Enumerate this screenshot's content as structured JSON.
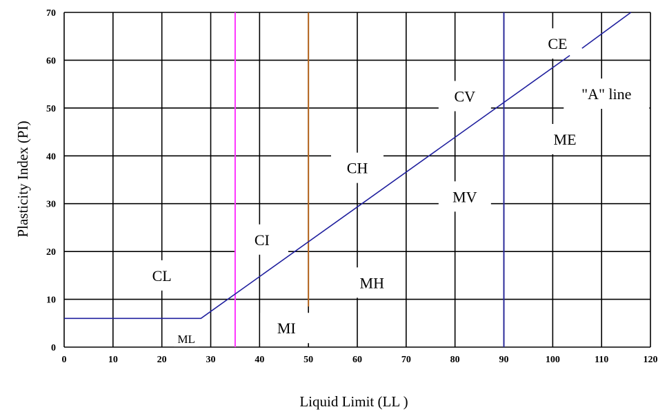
{
  "chart_data": {
    "type": "line",
    "title": "",
    "xlabel": "Liquid Limit (LL )",
    "ylabel": "Plasticity Index (PI)",
    "xlim": [
      0,
      120
    ],
    "ylim": [
      0,
      70
    ],
    "x_ticks": [
      0,
      10,
      20,
      30,
      40,
      50,
      60,
      70,
      80,
      90,
      100,
      110,
      120
    ],
    "y_ticks": [
      0,
      10,
      20,
      30,
      40,
      50,
      60,
      70
    ],
    "x_tick_labels": [
      "0",
      "10",
      "20",
      "30",
      "40",
      "50",
      "60",
      "70",
      "80",
      "90",
      "100",
      "110",
      "120"
    ],
    "y_tick_labels": [
      "0",
      "10",
      "20",
      "30",
      "40",
      "50",
      "60",
      "70"
    ],
    "grid": true,
    "series": [
      {
        "name": "\"A\" line",
        "color": "#1f1f9e",
        "points": [
          [
            0,
            6
          ],
          [
            28,
            6
          ],
          [
            103.5,
            61
          ]
        ]
      },
      {
        "name": "\"A\" line",
        "color": "#1f1f9e",
        "points": [
          [
            106,
            62.5
          ],
          [
            116,
            70
          ]
        ]
      }
    ],
    "vertical_lines": [
      {
        "x": 35,
        "color": "#ff33ff",
        "y_from": 0,
        "y_to": 70
      },
      {
        "x": 50,
        "color": "#b5651d",
        "y_from": 8.5,
        "y_to": 70
      },
      {
        "x": 90,
        "color": "#2a2a9a",
        "y_from": 0,
        "y_to": 70
      }
    ],
    "annotations": [
      {
        "text": "CL",
        "x": 20,
        "y": 15,
        "size": "normal"
      },
      {
        "text": "ML",
        "x": 25,
        "y": 2,
        "size": "small"
      },
      {
        "text": "CI",
        "x": 40.5,
        "y": 22.5,
        "size": "normal"
      },
      {
        "text": "MI",
        "x": 45.5,
        "y": 4,
        "size": "normal"
      },
      {
        "text": "CH",
        "x": 60,
        "y": 37.5,
        "size": "normal"
      },
      {
        "text": "MH",
        "x": 63,
        "y": 13.5,
        "size": "normal"
      },
      {
        "text": "CV",
        "x": 82,
        "y": 52.5,
        "size": "normal"
      },
      {
        "text": "MV",
        "x": 82,
        "y": 31.5,
        "size": "normal"
      },
      {
        "text": "CE",
        "x": 101,
        "y": 63.5,
        "size": "normal"
      },
      {
        "text": "\"A\" line",
        "x": 111,
        "y": 53,
        "size": "normal"
      },
      {
        "text": "ME",
        "x": 102.5,
        "y": 43.5,
        "size": "normal"
      }
    ]
  }
}
